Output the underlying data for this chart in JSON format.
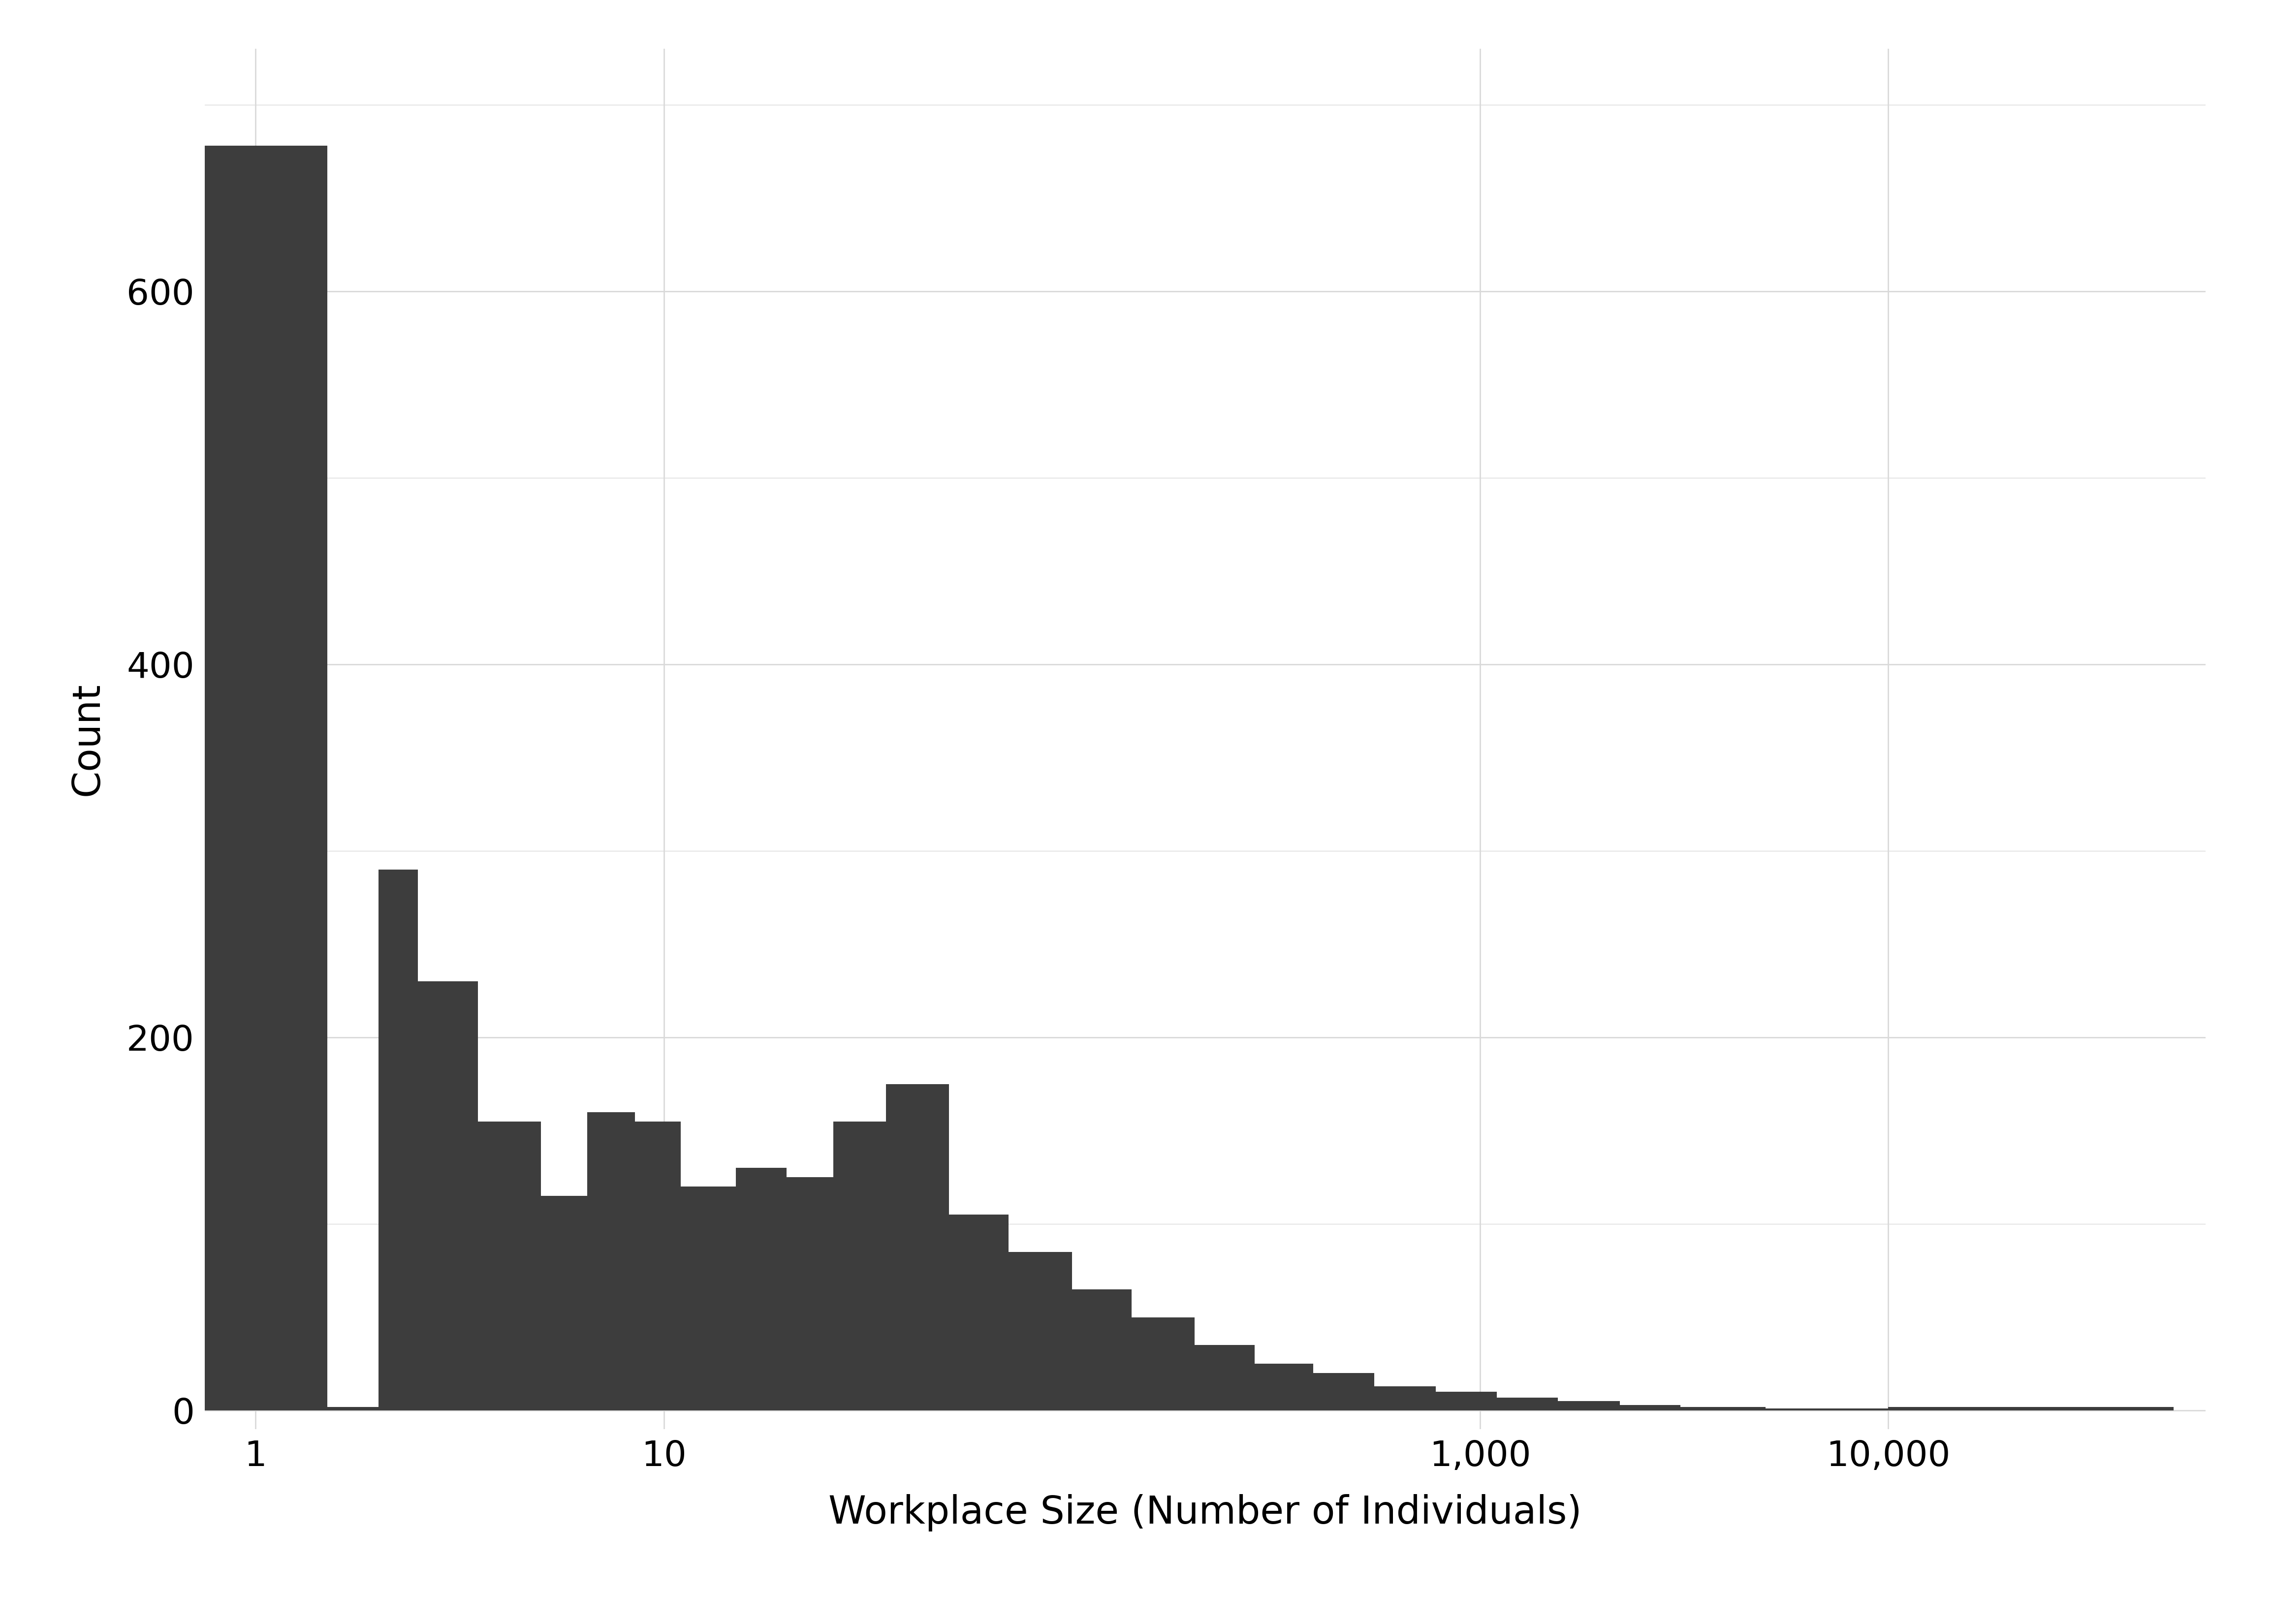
{
  "xlabel": "Workplace Size (Number of Individuals)",
  "ylabel": "Count",
  "bar_color": "#3d3d3d",
  "background_color": "#ffffff",
  "grid_color": "#d9d9d9",
  "xlim_log": [
    0.75,
    60000
  ],
  "ylim": [
    -10,
    730
  ],
  "yticks": [
    0,
    200,
    400,
    600
  ],
  "xticks": [
    1,
    10,
    1000,
    10000
  ],
  "axis_label_fontsize": 56,
  "tick_fontsize": 52,
  "ylabel_rotation": 90,
  "bar_edges": [
    0.75,
    1.5,
    2.0,
    2.5,
    3.5,
    5.0,
    6.5,
    8.5,
    11.0,
    15.0,
    20.0,
    26.0,
    35.0,
    50.0,
    70.0,
    100.0,
    140.0,
    200.0,
    280.0,
    390.0,
    550.0,
    780.0,
    1100.0,
    1550.0,
    2200.0,
    3100.0,
    5000.0,
    10000.0,
    50000.0
  ],
  "bar_heights": [
    678,
    2,
    290,
    230,
    155,
    115,
    160,
    155,
    120,
    130,
    125,
    155,
    175,
    105,
    85,
    65,
    50,
    35,
    25,
    20,
    13,
    10,
    7,
    5,
    3,
    2,
    1,
    2
  ]
}
